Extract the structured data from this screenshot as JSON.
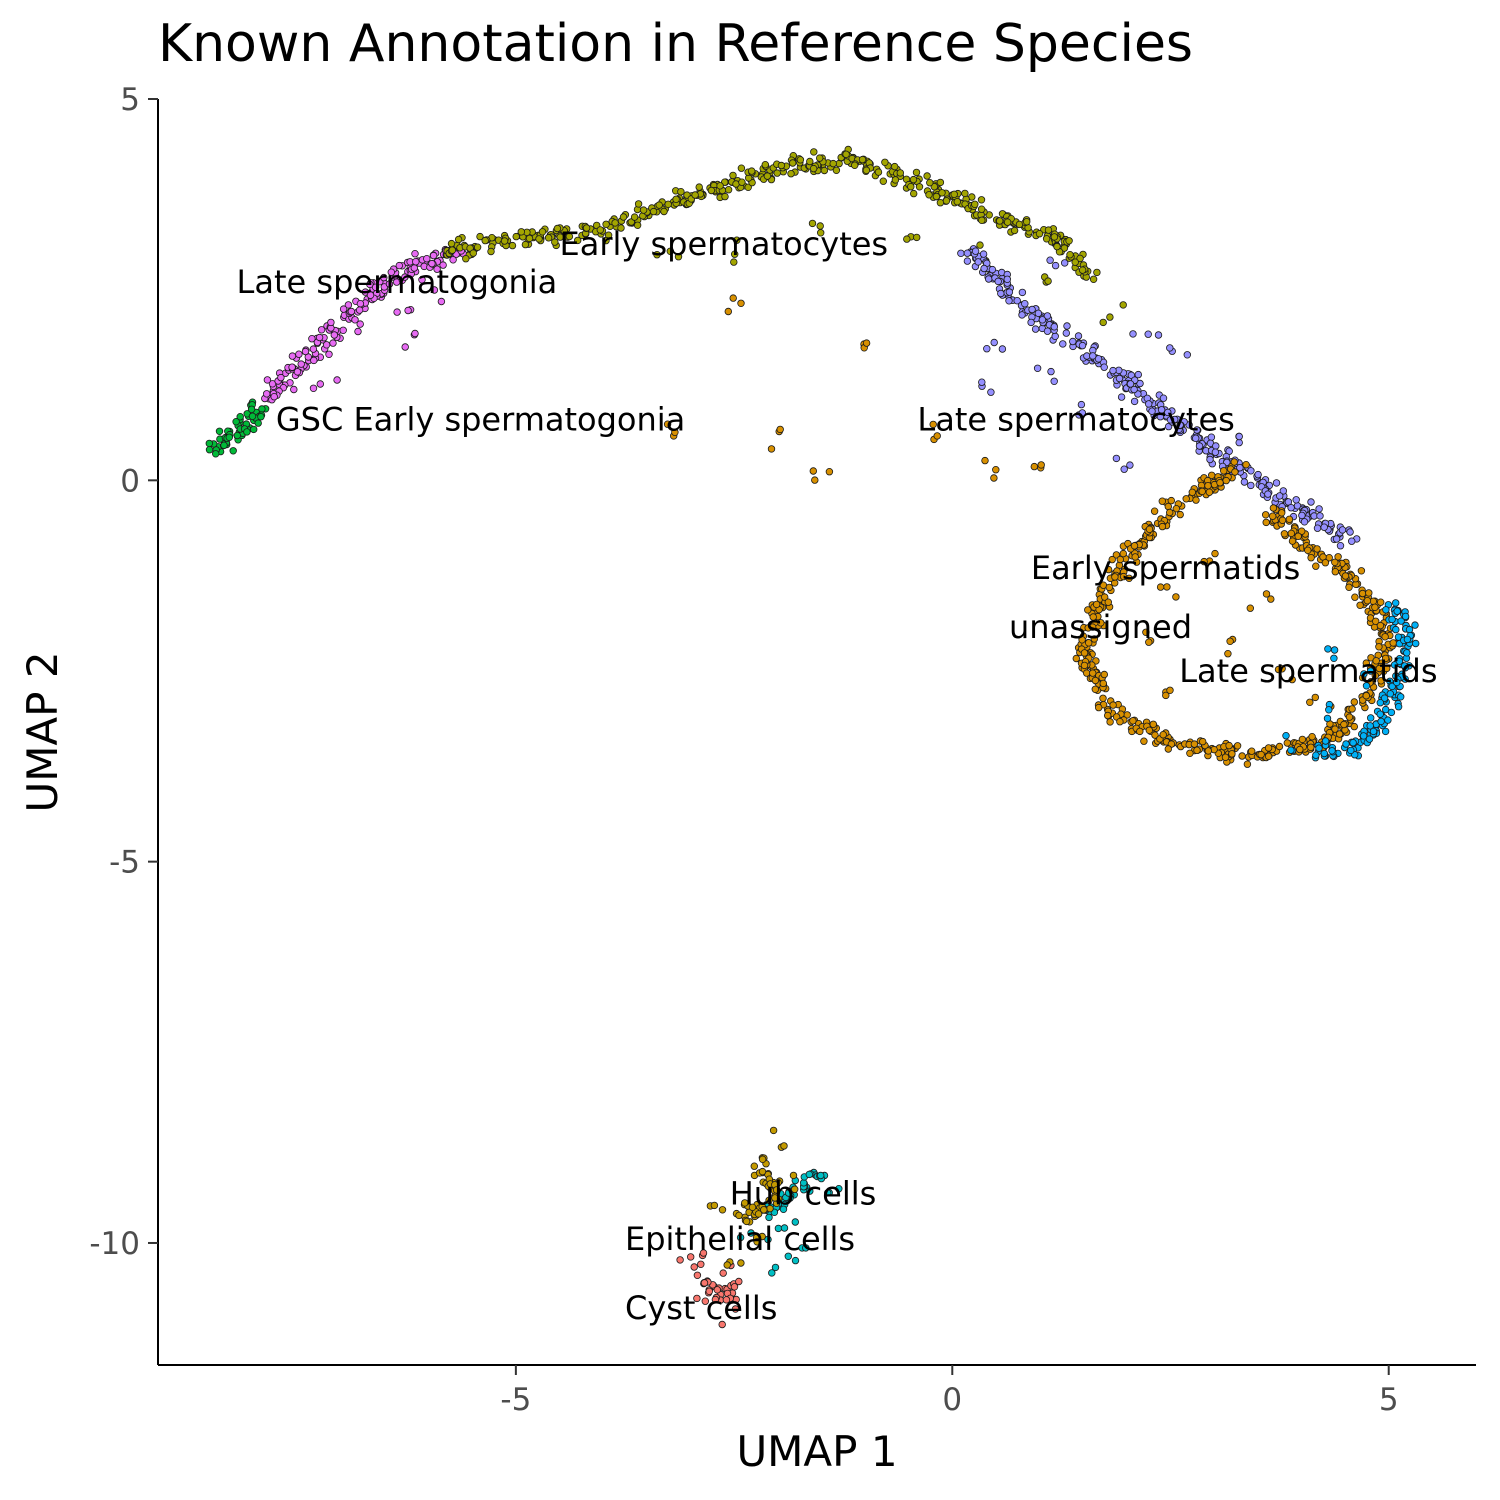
{
  "chart_data": {
    "type": "scatter",
    "title": "Known Annotation in Reference Species",
    "xlabel": "UMAP 1",
    "ylabel": "UMAP 2",
    "xlim": [
      -9.1,
      6
    ],
    "ylim": [
      -11.6,
      5
    ],
    "x_ticks": [
      {
        "value": -5,
        "label": "-5"
      },
      {
        "value": 0,
        "label": "0"
      },
      {
        "value": 5,
        "label": "5"
      }
    ],
    "y_ticks": [
      {
        "value": 5,
        "label": "5"
      },
      {
        "value": 0,
        "label": "0"
      },
      {
        "value": -5,
        "label": "-5"
      },
      {
        "value": -10,
        "label": "-10"
      }
    ],
    "grid": false,
    "legend": "none",
    "series": [
      {
        "name": "GSC Early spermatogonia",
        "color": "#00BA38",
        "path": [
          [
            -8.45,
            0.4
          ],
          [
            -8.1,
            0.75
          ],
          [
            -7.9,
            0.95
          ]
        ],
        "scatter": [
          [
            -8.4,
            0.42
          ],
          [
            -8.3,
            0.5
          ],
          [
            -8.2,
            0.6
          ],
          [
            -8.05,
            0.78
          ],
          [
            -7.95,
            0.9
          ]
        ]
      },
      {
        "name": "Late spermatogonia",
        "color": "#E76BF3",
        "path": [
          [
            -7.9,
            1.0
          ],
          [
            -7.4,
            1.6
          ],
          [
            -7.0,
            2.1
          ],
          [
            -6.5,
            2.6
          ],
          [
            -6.0,
            2.9
          ],
          [
            -5.6,
            3.0
          ]
        ],
        "scatter": [
          [
            -6.8,
            2.0
          ],
          [
            -6.4,
            2.3
          ],
          [
            -6.2,
            1.9
          ],
          [
            -5.9,
            2.5
          ],
          [
            -7.2,
            1.3
          ]
        ]
      },
      {
        "name": "Early spermatocytes",
        "color": "#A3A500",
        "path": [
          [
            -5.8,
            3.0
          ],
          [
            -5.0,
            3.15
          ],
          [
            -4.0,
            3.3
          ],
          [
            -3.0,
            3.7
          ],
          [
            -2.0,
            4.1
          ],
          [
            -1.2,
            4.2
          ],
          [
            -0.6,
            4.0
          ],
          [
            0.0,
            3.7
          ],
          [
            0.6,
            3.4
          ],
          [
            1.2,
            3.2
          ],
          [
            1.6,
            2.6
          ]
        ],
        "scatter": [
          [
            -2.5,
            3.0
          ],
          [
            -1.5,
            3.3
          ],
          [
            -0.5,
            3.1
          ],
          [
            0.3,
            2.9
          ],
          [
            1.1,
            2.6
          ],
          [
            1.8,
            2.2
          ],
          [
            -3.3,
            3.0
          ]
        ]
      },
      {
        "name": "Late spermatocytes",
        "color": "#9590FF",
        "path": [
          [
            0.2,
            3.0
          ],
          [
            0.8,
            2.3
          ],
          [
            1.4,
            1.8
          ],
          [
            2.0,
            1.3
          ],
          [
            2.5,
            0.8
          ],
          [
            3.0,
            0.4
          ],
          [
            3.5,
            0.0
          ],
          [
            4.0,
            -0.4
          ],
          [
            4.6,
            -0.8
          ]
        ],
        "scatter": [
          [
            0.6,
            1.8
          ],
          [
            1.0,
            1.4
          ],
          [
            1.5,
            0.9
          ],
          [
            2.2,
            1.9
          ],
          [
            2.6,
            1.6
          ],
          [
            0.4,
            1.2
          ],
          [
            3.3,
            0.5
          ],
          [
            2.0,
            0.2
          ],
          [
            1.2,
            2.8
          ]
        ]
      },
      {
        "name": "Early spermatids",
        "color": "#D89000",
        "path": [
          [
            3.3,
            0.2
          ],
          [
            2.5,
            -0.4
          ],
          [
            2.0,
            -1.0
          ],
          [
            1.7,
            -1.6
          ],
          [
            1.5,
            -2.3
          ],
          [
            1.8,
            -3.0
          ],
          [
            2.6,
            -3.5
          ],
          [
            3.5,
            -3.6
          ],
          [
            4.3,
            -3.4
          ],
          [
            4.8,
            -2.8
          ],
          [
            5.0,
            -2.0
          ],
          [
            4.6,
            -1.3
          ],
          [
            4.0,
            -0.8
          ],
          [
            3.6,
            -0.3
          ]
        ],
        "scatter": [
          [
            2.5,
            -1.5
          ],
          [
            3.0,
            -1.0
          ],
          [
            3.2,
            -2.2
          ],
          [
            2.4,
            -2.8
          ],
          [
            3.8,
            -2.5
          ],
          [
            3.6,
            -1.6
          ],
          [
            2.2,
            -2.0
          ],
          [
            4.2,
            -2.9
          ],
          [
            1.0,
            0.3
          ],
          [
            -0.2,
            0.6
          ],
          [
            -2.0,
            0.5
          ],
          [
            -1.5,
            0.1
          ],
          [
            -3.3,
            0.6
          ],
          [
            -1.0,
            1.8
          ],
          [
            -2.5,
            2.3
          ],
          [
            0.5,
            0.1
          ]
        ]
      },
      {
        "name": "Late spermatids",
        "color": "#00B0F6",
        "path": [
          [
            5.0,
            -1.6
          ],
          [
            5.2,
            -1.9
          ],
          [
            5.15,
            -2.5
          ],
          [
            4.9,
            -3.2
          ],
          [
            4.6,
            -3.5
          ],
          [
            4.2,
            -3.6
          ]
        ],
        "scatter": [
          [
            4.4,
            -2.2
          ],
          [
            4.7,
            -2.6
          ],
          [
            4.3,
            -3.0
          ],
          [
            3.9,
            -3.5
          ]
        ]
      },
      {
        "name": "Hub cells",
        "color": "#00BFC4",
        "path": [
          [
            -2.1,
            -9.6
          ],
          [
            -1.8,
            -9.3
          ],
          [
            -1.5,
            -9.1
          ]
        ],
        "scatter": [
          [
            -1.9,
            -9.8
          ],
          [
            -1.7,
            -10.0
          ],
          [
            -2.3,
            -9.9
          ],
          [
            -1.4,
            -9.4
          ],
          [
            -2.0,
            -10.3
          ]
        ]
      },
      {
        "name": "Epithelial cells",
        "color": "#F8766D",
        "path": [
          [
            -2.9,
            -10.5
          ],
          [
            -2.7,
            -10.6
          ],
          [
            -2.5,
            -10.7
          ]
        ],
        "scatter": [
          [
            -3.0,
            -10.3
          ],
          [
            -2.8,
            -10.8
          ],
          [
            -2.6,
            -10.4
          ],
          [
            -2.4,
            -10.6
          ],
          [
            -2.65,
            -10.9
          ],
          [
            -2.85,
            -10.2
          ]
        ]
      },
      {
        "name": "unassigned",
        "color": "#C49A00",
        "path": [
          [
            -2.2,
            -9.0
          ],
          [
            -2.0,
            -9.4
          ],
          [
            -2.4,
            -9.7
          ]
        ],
        "scatter": [
          [
            -2.6,
            -9.5
          ],
          [
            -2.2,
            -10.0
          ],
          [
            -1.8,
            -9.2
          ],
          [
            -2.5,
            -10.2
          ],
          [
            -1.95,
            -8.7
          ]
        ]
      }
    ],
    "annotations": [
      {
        "text": "Early spermatocytes",
        "x": -4.5,
        "y": 3.1
      },
      {
        "text": "Late spermatogonia",
        "x": -8.2,
        "y": 2.6
      },
      {
        "text": "GSC Early spermatogonia",
        "x": -7.75,
        "y": 0.8
      },
      {
        "text": "Late spermatocytes",
        "x": -0.4,
        "y": 0.8
      },
      {
        "text": "Early spermatids",
        "x": 0.9,
        "y": -1.15
      },
      {
        "text": "unassigned",
        "x": 0.65,
        "y": -1.92
      },
      {
        "text": "Late spermatids",
        "x": 2.6,
        "y": -2.5
      },
      {
        "text": "Hub cells",
        "x": -2.55,
        "y": -9.35
      },
      {
        "text": "Epithelial cells",
        "x": -3.75,
        "y": -9.95
      },
      {
        "text": "Cyst cells",
        "x": -3.75,
        "y": -10.85
      }
    ]
  }
}
